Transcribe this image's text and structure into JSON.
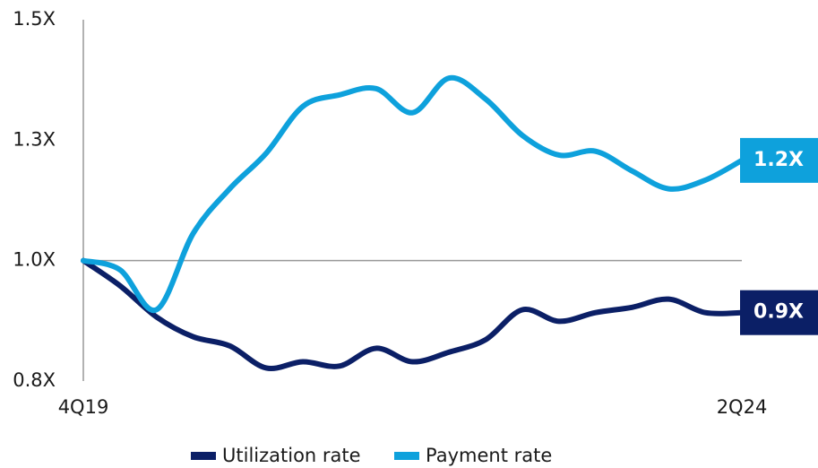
{
  "chart_data": {
    "type": "line",
    "categories": [
      "4Q19",
      null,
      null,
      null,
      null,
      null,
      null,
      null,
      null,
      null,
      null,
      null,
      null,
      null,
      null,
      null,
      null,
      null,
      "2Q24"
    ],
    "series": [
      {
        "name": "Utilization rate",
        "color": "#0b1f66",
        "values": [
          1.0,
          0.948,
          0.883,
          0.842,
          0.823,
          0.777,
          0.79,
          0.781,
          0.818,
          0.79,
          0.81,
          0.836,
          0.898,
          0.874,
          0.892,
          0.903,
          0.92,
          0.892,
          0.892
        ],
        "value_labels": [
          null,
          null,
          null,
          null,
          null,
          null,
          null,
          null,
          null,
          null,
          null,
          null,
          null,
          null,
          null,
          null,
          null,
          null,
          "0.9X"
        ]
      },
      {
        "name": "Payment rate",
        "color": "#0ea1dc",
        "values": [
          1.0,
          0.981,
          0.898,
          1.056,
          1.149,
          1.223,
          1.32,
          1.344,
          1.357,
          1.307,
          1.379,
          1.335,
          1.26,
          1.219,
          1.227,
          1.186,
          1.149,
          1.167,
          1.208
        ],
        "value_labels": [
          null,
          null,
          null,
          null,
          null,
          null,
          null,
          null,
          null,
          null,
          null,
          null,
          null,
          null,
          null,
          null,
          null,
          null,
          "1.2X"
        ]
      }
    ],
    "ylim": [
      0.75,
      1.5
    ],
    "yticks": [
      {
        "value": 0.75,
        "label": "0.8X"
      },
      {
        "value": 1.0,
        "label": "1.0X"
      },
      {
        "value": 1.25,
        "label": "1.3X"
      },
      {
        "value": 1.5,
        "label": "1.5X"
      }
    ],
    "hline": 1.0,
    "legend": "bottom"
  }
}
